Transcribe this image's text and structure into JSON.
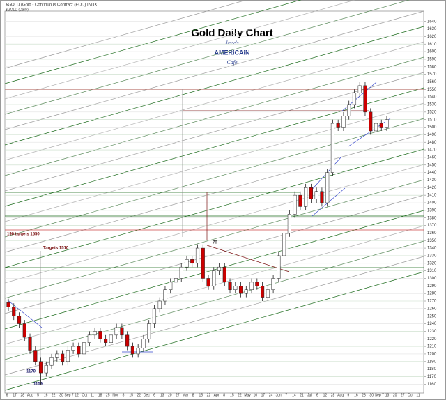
{
  "chart_data": {
    "type": "candlestick",
    "header": "$GOLD (Gold - Continuous Contract (EOD) INDX",
    "subheader": "$GOLD (Daily)",
    "title": "Gold Daily Chart",
    "logo": [
      "Jesse's",
      "AMERICAIN",
      "Cafe"
    ],
    "annotations": [
      "190 targets 1550",
      "Targets 1510",
      "1170",
      "1159",
      "70"
    ],
    "x_labels": [
      "6",
      "17",
      "28",
      "Aug",
      "5",
      "16",
      "22",
      "30",
      "Sep 7",
      "12",
      "Oct",
      "11",
      "18",
      "25",
      "Nov",
      "8",
      "15",
      "22",
      "Dec",
      "6",
      "13",
      "20",
      "27",
      "Mar",
      "8",
      "15",
      "22",
      "Apr",
      "8",
      "15",
      "22",
      "May",
      "10",
      "17",
      "24",
      "Jun",
      "7",
      "14",
      "21",
      "Jul",
      "6",
      "12",
      "28",
      "Aug",
      "9",
      "16",
      "23",
      "30",
      "Sep 7",
      "13",
      "20",
      "27",
      "Oct",
      "11"
    ],
    "open": [
      1268,
      1262,
      1250,
      1240,
      1222,
      1205,
      1190,
      1175,
      1185,
      1195,
      1200,
      1190,
      1205,
      1210,
      1200,
      1215,
      1225,
      1230,
      1220,
      1215,
      1225,
      1235,
      1225,
      1210,
      1200,
      1208,
      1220,
      1240,
      1260,
      1270,
      1285,
      1295,
      1300,
      1315,
      1325,
      1320,
      1340,
      1300,
      1290,
      1310,
      1315,
      1295,
      1285,
      1290,
      1280,
      1285,
      1295,
      1290,
      1275,
      1285,
      1300,
      1330,
      1360,
      1385,
      1410,
      1395,
      1420,
      1405,
      1415,
      1400,
      1440,
      1505,
      1500,
      1515,
      1530,
      1545,
      1555,
      1520,
      1495,
      1505,
      1500
    ],
    "high": [
      1273,
      1267,
      1255,
      1245,
      1227,
      1210,
      1195,
      1190,
      1200,
      1205,
      1205,
      1210,
      1215,
      1215,
      1220,
      1230,
      1235,
      1235,
      1225,
      1230,
      1240,
      1240,
      1230,
      1215,
      1213,
      1225,
      1245,
      1265,
      1275,
      1290,
      1300,
      1305,
      1320,
      1330,
      1330,
      1345,
      1345,
      1305,
      1315,
      1320,
      1320,
      1300,
      1295,
      1295,
      1290,
      1300,
      1300,
      1295,
      1290,
      1305,
      1335,
      1365,
      1390,
      1415,
      1415,
      1425,
      1425,
      1420,
      1420,
      1445,
      1510,
      1510,
      1520,
      1535,
      1550,
      1560,
      1560,
      1525,
      1510,
      1510,
      1515
    ],
    "low": [
      1257,
      1245,
      1235,
      1217,
      1200,
      1185,
      1159,
      1170,
      1180,
      1190,
      1185,
      1185,
      1200,
      1195,
      1195,
      1210,
      1220,
      1215,
      1210,
      1210,
      1220,
      1220,
      1205,
      1195,
      1195,
      1203,
      1215,
      1235,
      1255,
      1265,
      1280,
      1290,
      1295,
      1310,
      1315,
      1315,
      1295,
      1285,
      1285,
      1305,
      1290,
      1280,
      1280,
      1275,
      1275,
      1280,
      1285,
      1270,
      1270,
      1280,
      1295,
      1325,
      1355,
      1380,
      1390,
      1390,
      1400,
      1400,
      1395,
      1395,
      1435,
      1495,
      1495,
      1510,
      1525,
      1540,
      1515,
      1490,
      1490,
      1495,
      1495
    ],
    "close": [
      1262,
      1250,
      1240,
      1222,
      1205,
      1190,
      1175,
      1185,
      1195,
      1200,
      1190,
      1205,
      1210,
      1200,
      1215,
      1225,
      1230,
      1220,
      1215,
      1225,
      1235,
      1225,
      1210,
      1200,
      1208,
      1220,
      1240,
      1260,
      1270,
      1285,
      1295,
      1300,
      1315,
      1325,
      1320,
      1340,
      1300,
      1290,
      1310,
      1315,
      1295,
      1285,
      1290,
      1280,
      1285,
      1295,
      1290,
      1275,
      1285,
      1300,
      1330,
      1360,
      1385,
      1410,
      1395,
      1420,
      1405,
      1415,
      1400,
      1440,
      1505,
      1500,
      1515,
      1530,
      1545,
      1555,
      1520,
      1495,
      1505,
      1500,
      1510
    ],
    "up_color": "#ffffff",
    "down_color": "#cc0000",
    "ylim": [
      1152,
      1648
    ],
    "yticks": [
      1160,
      1170,
      1180,
      1190,
      1200,
      1210,
      1220,
      1230,
      1240,
      1250,
      1260,
      1270,
      1280,
      1290,
      1300,
      1310,
      1320,
      1330,
      1340,
      1350,
      1360,
      1370,
      1380,
      1390,
      1400,
      1410,
      1420,
      1430,
      1440,
      1450,
      1460,
      1470,
      1480,
      1490,
      1500,
      1510,
      1520,
      1530,
      1540,
      1550,
      1560,
      1570,
      1580,
      1590,
      1600,
      1610,
      1620,
      1630,
      1640
    ],
    "grid": true
  }
}
